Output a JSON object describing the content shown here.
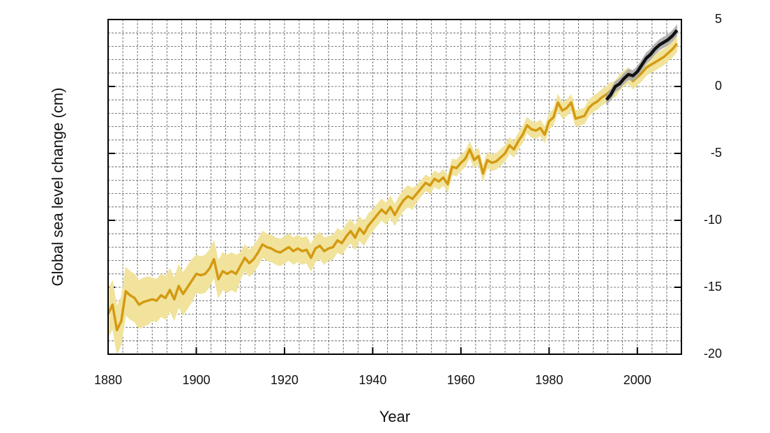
{
  "chart_data": {
    "type": "line",
    "xlabel": "Year",
    "ylabel": "Global sea level change (cm)",
    "xlim": [
      1880,
      2010
    ],
    "xticks": [
      1880,
      1900,
      1920,
      1940,
      1960,
      1980,
      2000
    ],
    "ylim": [
      -20,
      5
    ],
    "yticks": [
      -20,
      -15,
      -10,
      -5,
      0,
      5
    ],
    "grid": true,
    "series": [
      {
        "color": "#d49a12",
        "band_color": "#f1e39c",
        "x": [
          1880,
          1881,
          1882,
          1883,
          1884,
          1885,
          1886,
          1887,
          1888,
          1889,
          1890,
          1891,
          1892,
          1893,
          1894,
          1895,
          1896,
          1897,
          1898,
          1899,
          1900,
          1901,
          1902,
          1903,
          1904,
          1905,
          1906,
          1907,
          1908,
          1909,
          1910,
          1911,
          1912,
          1913,
          1914,
          1915,
          1916,
          1917,
          1918,
          1919,
          1920,
          1921,
          1922,
          1923,
          1924,
          1925,
          1926,
          1927,
          1928,
          1929,
          1930,
          1931,
          1932,
          1933,
          1934,
          1935,
          1936,
          1937,
          1938,
          1939,
          1940,
          1941,
          1942,
          1943,
          1944,
          1945,
          1946,
          1947,
          1948,
          1949,
          1950,
          1951,
          1952,
          1953,
          1954,
          1955,
          1956,
          1957,
          1958,
          1959,
          1960,
          1961,
          1962,
          1963,
          1964,
          1965,
          1966,
          1967,
          1968,
          1969,
          1970,
          1971,
          1972,
          1973,
          1974,
          1975,
          1976,
          1977,
          1978,
          1979,
          1980,
          1981,
          1982,
          1983,
          1984,
          1985,
          1986,
          1987,
          1988,
          1989,
          1990,
          1991,
          1992,
          1993,
          1994,
          1995,
          1996,
          1997,
          1998,
          1999,
          2000,
          2001,
          2002,
          2003,
          2004,
          2005,
          2006,
          2007,
          2008,
          2009
        ],
        "values": [
          -17.0,
          -16.3,
          -18.2,
          -17.5,
          -15.3,
          -15.6,
          -15.8,
          -16.3,
          -16.1,
          -16.0,
          -15.9,
          -16.0,
          -15.6,
          -15.8,
          -15.2,
          -15.9,
          -14.9,
          -15.5,
          -15.0,
          -14.5,
          -14.0,
          -14.1,
          -14.0,
          -13.6,
          -12.9,
          -14.4,
          -13.8,
          -14.0,
          -13.8,
          -14.0,
          -13.4,
          -12.8,
          -13.2,
          -12.9,
          -12.4,
          -11.8,
          -12.0,
          -12.1,
          -12.3,
          -12.4,
          -12.2,
          -12.0,
          -12.3,
          -12.1,
          -12.3,
          -12.2,
          -12.8,
          -12.1,
          -11.9,
          -12.3,
          -12.1,
          -12.0,
          -11.5,
          -11.7,
          -11.2,
          -10.8,
          -11.3,
          -10.6,
          -11.0,
          -10.4,
          -10.0,
          -9.6,
          -9.2,
          -9.5,
          -9.0,
          -9.6,
          -9.0,
          -8.5,
          -8.2,
          -8.4,
          -8.0,
          -7.6,
          -7.2,
          -7.4,
          -6.9,
          -7.1,
          -6.8,
          -7.3,
          -6.0,
          -6.1,
          -5.7,
          -5.4,
          -4.7,
          -5.5,
          -5.2,
          -6.5,
          -5.5,
          -5.7,
          -5.6,
          -5.3,
          -5.0,
          -4.4,
          -4.7,
          -4.1,
          -3.6,
          -2.9,
          -3.2,
          -3.3,
          -3.1,
          -3.6,
          -2.6,
          -2.3,
          -1.2,
          -1.8,
          -1.6,
          -1.2,
          -2.4,
          -2.3,
          -2.2,
          -1.6,
          -1.3,
          -1.1,
          -0.8,
          -0.6,
          -0.3,
          -0.2,
          0.3,
          0.6,
          0.8,
          0.4,
          0.7,
          1.0,
          1.4,
          1.6,
          1.8,
          2.0,
          2.2,
          2.5,
          2.8,
          3.2
        ],
        "error": [
          1.8,
          1.8,
          1.8,
          1.8,
          1.8,
          1.8,
          1.8,
          1.8,
          1.8,
          1.8,
          1.6,
          1.6,
          1.6,
          1.6,
          1.6,
          1.6,
          1.6,
          1.6,
          1.6,
          1.6,
          1.4,
          1.4,
          1.4,
          1.4,
          1.4,
          1.4,
          1.4,
          1.4,
          1.4,
          1.4,
          1.0,
          1.0,
          1.0,
          1.0,
          1.0,
          1.0,
          1.0,
          1.0,
          1.0,
          1.0,
          1.0,
          1.0,
          1.0,
          1.0,
          1.0,
          1.0,
          1.0,
          1.0,
          1.0,
          1.0,
          0.9,
          0.9,
          0.9,
          0.9,
          0.9,
          0.9,
          0.9,
          0.9,
          0.9,
          0.9,
          0.8,
          0.8,
          0.8,
          0.8,
          0.8,
          0.8,
          0.8,
          0.8,
          0.8,
          0.8,
          0.6,
          0.6,
          0.6,
          0.6,
          0.6,
          0.6,
          0.6,
          0.6,
          0.6,
          0.6,
          0.6,
          0.6,
          0.6,
          0.6,
          0.6,
          0.6,
          0.6,
          0.6,
          0.6,
          0.6,
          0.6,
          0.6,
          0.6,
          0.6,
          0.6,
          0.6,
          0.6,
          0.6,
          0.6,
          0.6,
          0.6,
          0.6,
          0.6,
          0.6,
          0.6,
          0.6,
          0.6,
          0.6,
          0.6,
          0.6,
          0.6,
          0.6,
          0.6,
          0.6,
          0.6,
          0.6,
          0.6,
          0.6,
          0.6,
          0.6,
          0.6,
          0.6,
          0.6,
          0.6,
          0.6,
          0.6,
          0.6,
          0.6,
          0.6,
          0.6
        ]
      },
      {
        "color": "#111111",
        "band_color": "#a9a9a9",
        "x": [
          1993,
          1994,
          1995,
          1996,
          1997,
          1998,
          1999,
          2000,
          2001,
          2002,
          2003,
          2004,
          2005,
          2006,
          2007,
          2008,
          2009
        ],
        "values": [
          -1.0,
          -0.6,
          0.0,
          0.2,
          0.6,
          0.9,
          0.8,
          1.1,
          1.6,
          2.1,
          2.4,
          2.8,
          3.1,
          3.3,
          3.5,
          3.8,
          4.2
        ],
        "error": [
          0.4,
          0.4,
          0.4,
          0.4,
          0.4,
          0.4,
          0.4,
          0.4,
          0.4,
          0.4,
          0.4,
          0.4,
          0.4,
          0.4,
          0.4,
          0.4,
          0.4
        ]
      }
    ]
  }
}
